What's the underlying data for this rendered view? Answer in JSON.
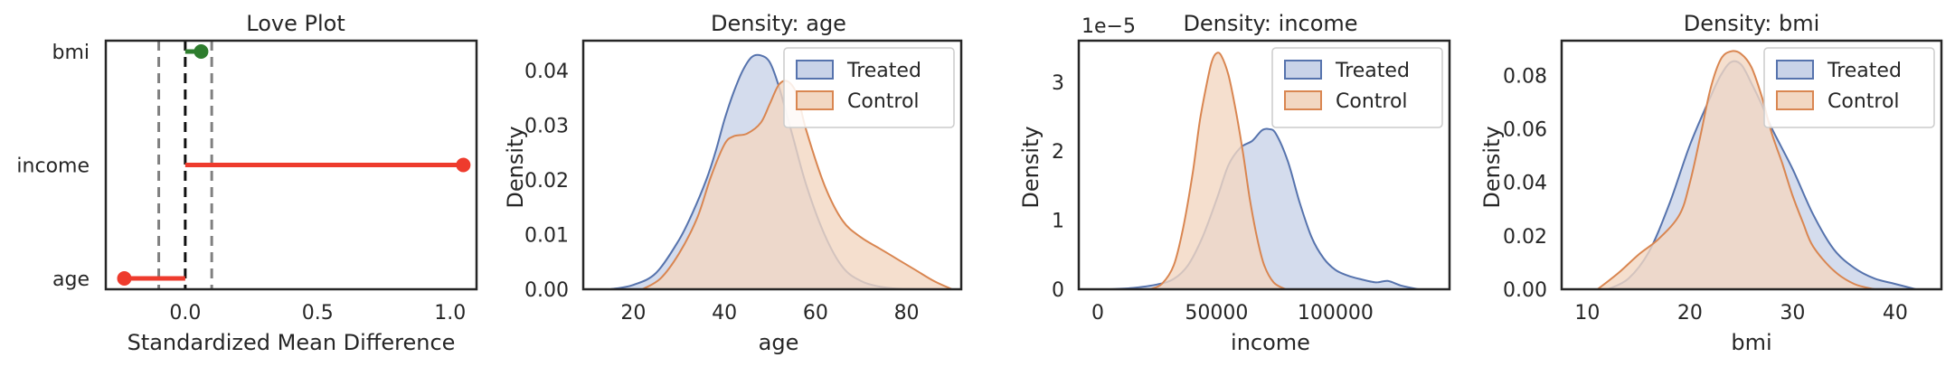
{
  "colors": {
    "treated_fill": "#c9d3e8",
    "treated_line": "#5673ad",
    "control_fill": "#f2d7c2",
    "control_line": "#d98651",
    "good": "#2e7d2e",
    "bad": "#ee3b2d",
    "axis": "#262626"
  },
  "chart_data": [
    {
      "type": "lollipop",
      "title": "Love Plot",
      "xlabel": "Standardized Mean Difference",
      "ylabel": "",
      "xlim": [
        -0.3,
        1.1
      ],
      "xticks": [
        0.0,
        0.5,
        1.0
      ],
      "xtick_labels": [
        "0.0",
        "0.5",
        "1.0"
      ],
      "categories": [
        "age",
        "income",
        "bmi"
      ],
      "values": [
        -0.23,
        1.05,
        0.06
      ],
      "point_colors": [
        "bad",
        "bad",
        "good"
      ],
      "reference_line": 0,
      "threshold_lines": [
        -0.1,
        0.1
      ]
    },
    {
      "type": "area",
      "title": "Density: age",
      "xlabel": "age",
      "ylabel": "Density",
      "xlim": [
        9,
        92
      ],
      "ylim": [
        0,
        0.0455
      ],
      "xticks": [
        20,
        40,
        60,
        80
      ],
      "xtick_labels": [
        "20",
        "40",
        "60",
        "80"
      ],
      "yticks": [
        0,
        0.01,
        0.02,
        0.03,
        0.04
      ],
      "ytick_labels": [
        "0.00",
        "0.01",
        "0.02",
        "0.03",
        "0.04"
      ],
      "legend": [
        "Treated",
        "Control"
      ],
      "series": [
        {
          "name": "Treated",
          "x": [
            15,
            20,
            25,
            30,
            33,
            36,
            38,
            40,
            42,
            44,
            46,
            48,
            50,
            52,
            55,
            58,
            62,
            66,
            70,
            74,
            78,
            82
          ],
          "values": [
            0.0,
            0.0008,
            0.003,
            0.009,
            0.014,
            0.02,
            0.025,
            0.031,
            0.036,
            0.04,
            0.0425,
            0.0428,
            0.0415,
            0.037,
            0.028,
            0.019,
            0.01,
            0.004,
            0.0015,
            0.0005,
            0.0001,
            0.0
          ]
        },
        {
          "name": "Control",
          "x": [
            22,
            26,
            30,
            34,
            37,
            40,
            42,
            45,
            48,
            50,
            52,
            54,
            56,
            58,
            62,
            66,
            70,
            74,
            78,
            82,
            86,
            90
          ],
          "values": [
            0.0,
            0.002,
            0.0065,
            0.013,
            0.0205,
            0.0265,
            0.028,
            0.0285,
            0.0305,
            0.034,
            0.0375,
            0.038,
            0.0355,
            0.029,
            0.019,
            0.0125,
            0.0095,
            0.0075,
            0.0055,
            0.0035,
            0.0015,
            0.0
          ]
        }
      ]
    },
    {
      "type": "area",
      "title": "Density: income",
      "xlabel": "income",
      "ylabel": "Density",
      "offset_label": "1e−5",
      "xlim": [
        -8000,
        148000
      ],
      "ylim": [
        0,
        3.6
      ],
      "xticks": [
        0,
        50000,
        100000
      ],
      "xtick_labels": [
        "0",
        "50000",
        "100000"
      ],
      "yticks": [
        0,
        1,
        2,
        3
      ],
      "ytick_labels": [
        "0",
        "1",
        "2",
        "3"
      ],
      "legend": [
        "Treated",
        "Control"
      ],
      "series": [
        {
          "name": "Treated",
          "x": [
            5000,
            15000,
            25000,
            32000,
            38000,
            44000,
            50000,
            55000,
            60000,
            65000,
            69000,
            72000,
            75000,
            80000,
            85000,
            90000,
            95000,
            100000,
            105000,
            110000,
            117000,
            122000,
            128000,
            135000
          ],
          "values": [
            0.0,
            0.02,
            0.07,
            0.15,
            0.35,
            0.75,
            1.3,
            1.8,
            2.05,
            2.15,
            2.3,
            2.32,
            2.25,
            1.85,
            1.25,
            0.75,
            0.45,
            0.28,
            0.2,
            0.15,
            0.1,
            0.12,
            0.05,
            0.0
          ]
        },
        {
          "name": "Control",
          "x": [
            22000,
            27000,
            32000,
            36000,
            40000,
            43000,
            46000,
            48000,
            50000,
            52000,
            55000,
            58000,
            61000,
            64000,
            67000,
            70000,
            74000,
            79000
          ],
          "values": [
            0.0,
            0.08,
            0.35,
            0.9,
            1.7,
            2.45,
            3.0,
            3.3,
            3.42,
            3.38,
            3.1,
            2.6,
            2.0,
            1.3,
            0.75,
            0.35,
            0.1,
            0.0
          ]
        }
      ]
    },
    {
      "type": "area",
      "title": "Density: bmi",
      "xlabel": "bmi",
      "ylabel": "Density",
      "xlim": [
        7.5,
        44.5
      ],
      "ylim": [
        0,
        0.093
      ],
      "xticks": [
        10,
        20,
        30,
        40
      ],
      "xtick_labels": [
        "10",
        "20",
        "30",
        "40"
      ],
      "yticks": [
        0,
        0.02,
        0.04,
        0.06,
        0.08
      ],
      "ytick_labels": [
        "0.00",
        "0.02",
        "0.04",
        "0.06",
        "0.08"
      ],
      "legend": [
        "Treated",
        "Control"
      ],
      "series": [
        {
          "name": "Treated",
          "x": [
            12,
            14,
            16,
            18,
            20,
            22,
            23,
            24,
            25,
            26,
            27,
            28,
            30,
            32,
            34,
            36,
            38,
            40,
            42
          ],
          "values": [
            0.0,
            0.004,
            0.014,
            0.032,
            0.054,
            0.072,
            0.08,
            0.085,
            0.084,
            0.077,
            0.069,
            0.06,
            0.045,
            0.028,
            0.015,
            0.008,
            0.004,
            0.002,
            0.0
          ]
        },
        {
          "name": "Control",
          "x": [
            11,
            13,
            15,
            17,
            19,
            20,
            21,
            22,
            23,
            24,
            25,
            26,
            27,
            28,
            29,
            30,
            31,
            32,
            34,
            36,
            38
          ],
          "values": [
            0.0,
            0.006,
            0.013,
            0.019,
            0.028,
            0.04,
            0.057,
            0.075,
            0.086,
            0.089,
            0.088,
            0.083,
            0.072,
            0.058,
            0.047,
            0.035,
            0.025,
            0.016,
            0.007,
            0.002,
            0.0
          ]
        }
      ]
    }
  ]
}
